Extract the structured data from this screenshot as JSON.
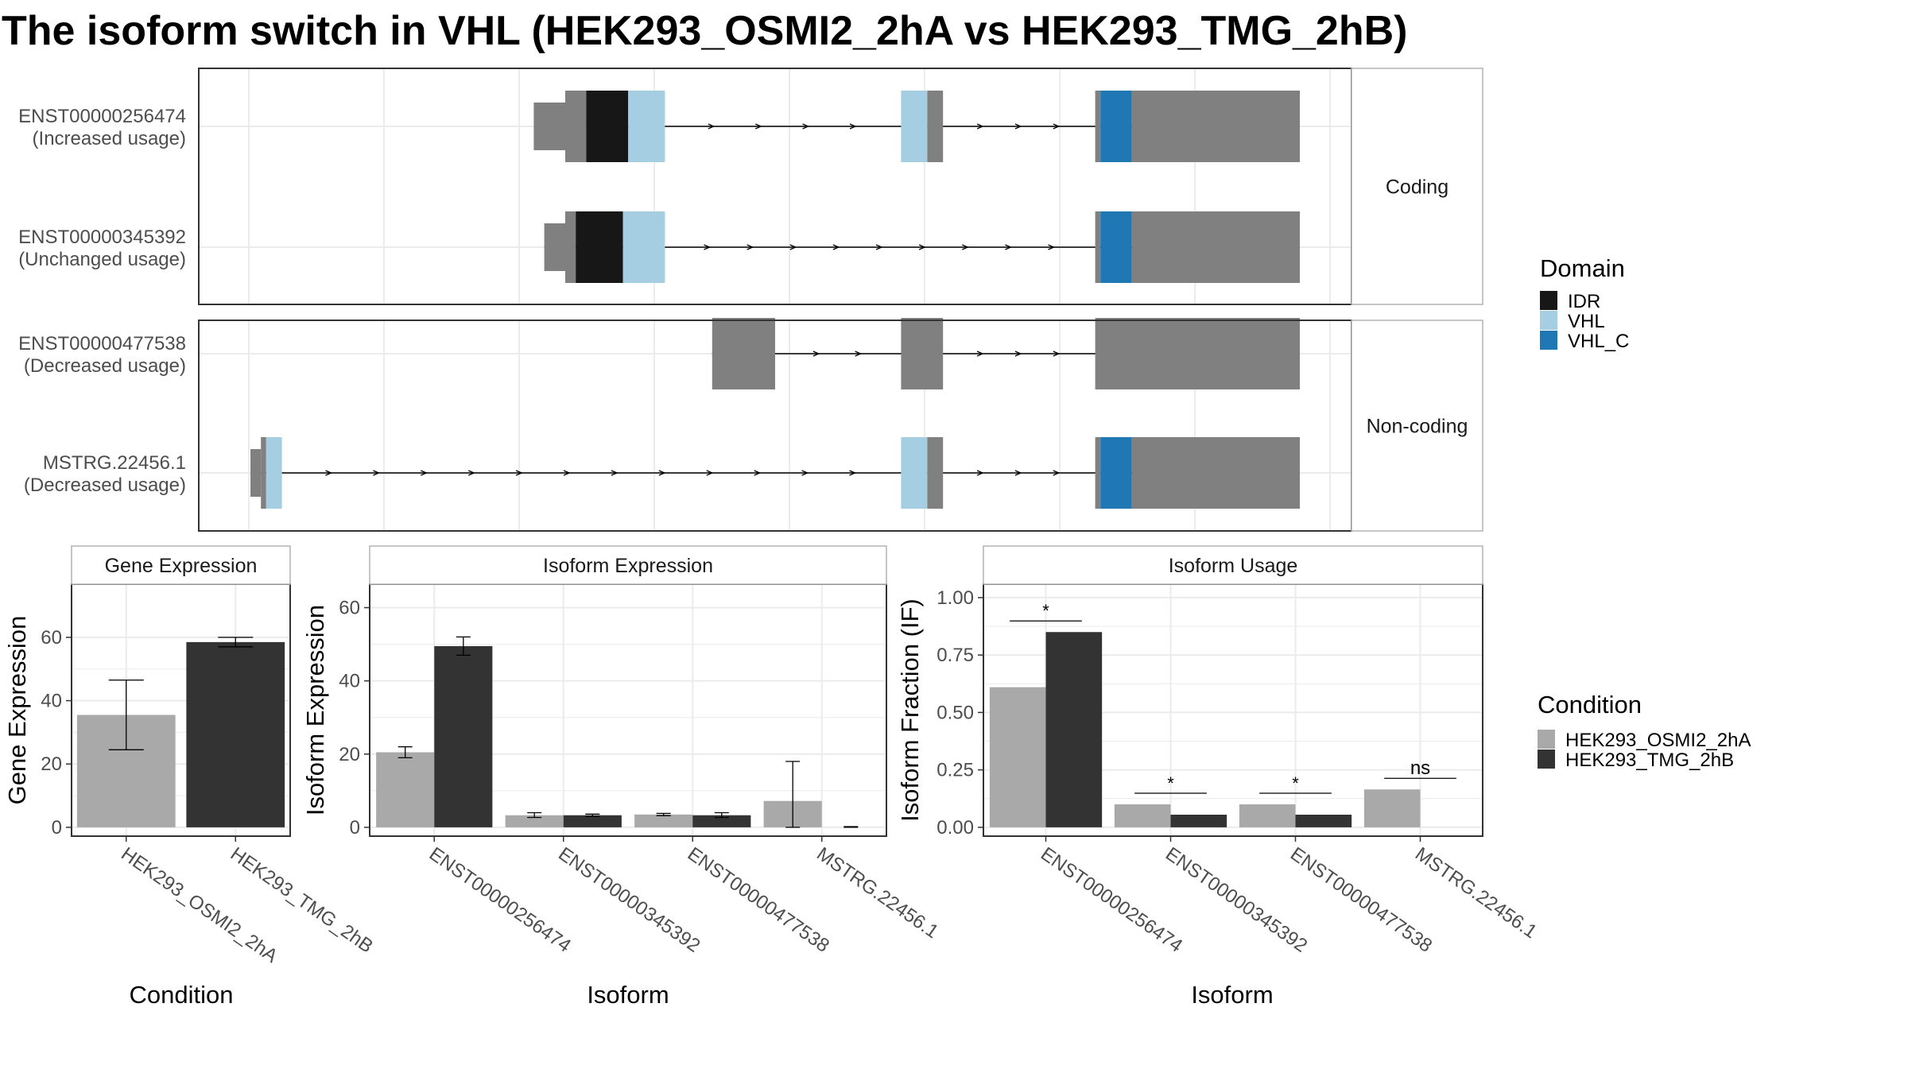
{
  "title": "The isoform switch in VHL (HEK293_OSMI2_2hA vs HEK293_TMG_2hB)",
  "colors": {
    "domain_IDR": "#171717",
    "domain_VHL": "#a6cee3",
    "domain_VHL_C": "#1f78b4",
    "exon": "#808080",
    "condition_A": "#a9a9a9",
    "condition_B": "#333333",
    "grid": "#ebebeb",
    "panel_border": "#333333"
  },
  "legends": {
    "domain": {
      "title": "Domain",
      "items": [
        "IDR",
        "VHL",
        "VHL_C"
      ]
    },
    "condition": {
      "title": "Condition",
      "items": [
        "HEK293_OSMI2_2hA",
        "HEK293_TMG_2hB"
      ]
    }
  },
  "chart_data": [
    {
      "type": "gene-structure",
      "panels": [
        {
          "strip": "Coding",
          "isoforms": [
            {
              "label": [
                "ENST00000256474",
                "(Increased usage)"
              ],
              "exons": [
                [
                  0.27,
                  0.3,
                  "utr"
                ],
                [
                  0.3,
                  0.32,
                  "exon"
                ],
                [
                  0.32,
                  0.36,
                  "IDR"
                ],
                [
                  0.36,
                  0.395,
                  "VHL"
                ],
                [
                  0.62,
                  0.645,
                  "VHL"
                ],
                [
                  0.645,
                  0.66,
                  "exon"
                ],
                [
                  0.805,
                  0.81,
                  "exon"
                ],
                [
                  0.81,
                  0.84,
                  "VHL_C"
                ],
                [
                  0.84,
                  1.0,
                  "exon"
                ]
              ]
            },
            {
              "label": [
                "ENST00000345392",
                "(Unchanged usage)"
              ],
              "exons": [
                [
                  0.28,
                  0.3,
                  "utr"
                ],
                [
                  0.3,
                  0.31,
                  "exon"
                ],
                [
                  0.31,
                  0.355,
                  "IDR"
                ],
                [
                  0.355,
                  0.395,
                  "VHL"
                ],
                [
                  0.805,
                  0.81,
                  "exon"
                ],
                [
                  0.81,
                  0.84,
                  "VHL_C"
                ],
                [
                  0.84,
                  1.0,
                  "exon"
                ]
              ]
            }
          ]
        },
        {
          "strip": "Non-coding",
          "isoforms": [
            {
              "label": [
                "ENST00000477538",
                "(Decreased usage)"
              ],
              "exons": [
                [
                  0.44,
                  0.5,
                  "exon"
                ],
                [
                  0.62,
                  0.66,
                  "exon"
                ],
                [
                  0.805,
                  1.0,
                  "exon"
                ]
              ]
            },
            {
              "label": [
                "MSTRG.22456.1",
                "(Decreased usage)"
              ],
              "exons": [
                [
                  0.0,
                  0.01,
                  "utr"
                ],
                [
                  0.01,
                  0.015,
                  "exon"
                ],
                [
                  0.015,
                  0.03,
                  "VHL"
                ],
                [
                  0.62,
                  0.645,
                  "VHL"
                ],
                [
                  0.645,
                  0.66,
                  "exon"
                ],
                [
                  0.805,
                  0.81,
                  "exon"
                ],
                [
                  0.81,
                  0.84,
                  "VHL_C"
                ],
                [
                  0.84,
                  1.0,
                  "exon"
                ]
              ]
            }
          ]
        }
      ]
    },
    {
      "type": "bar",
      "strip": "Gene Expression",
      "xlabel": "Condition",
      "ylabel": "Gene Expression",
      "ylim": [
        0,
        74
      ],
      "yticks": [
        0,
        20,
        40,
        60
      ],
      "categories": [
        "HEK293_OSMI2_2hA",
        "HEK293_TMG_2hB"
      ],
      "values": [
        35.5,
        58.5
      ],
      "errors": [
        [
          24.5,
          46.5
        ],
        [
          57.0,
          60.0
        ]
      ]
    },
    {
      "type": "bar",
      "strip": "Isoform Expression",
      "xlabel": "Isoform",
      "ylabel": "Isoform Expression",
      "ylim": [
        0,
        64
      ],
      "yticks": [
        0,
        20,
        40,
        60
      ],
      "categories": [
        "ENST00000256474",
        "ENST00000345392",
        "ENST00000477538",
        "MSTRG.22456.1"
      ],
      "series": [
        {
          "name": "HEK293_OSMI2_2hA",
          "values": [
            20.5,
            3.3,
            3.5,
            7.2
          ],
          "errors": [
            [
              19.0,
              22.0
            ],
            [
              2.7,
              4.0
            ],
            [
              3.2,
              3.8
            ],
            [
              0.0,
              18.0
            ]
          ]
        },
        {
          "name": "HEK293_TMG_2hB",
          "values": [
            49.5,
            3.3,
            3.3,
            0.0
          ],
          "errors": [
            [
              47.0,
              52.0
            ],
            [
              3.0,
              3.6
            ],
            [
              2.7,
              4.0
            ],
            [
              0.0,
              0.2
            ]
          ]
        }
      ]
    },
    {
      "type": "bar",
      "strip": "Isoform Usage",
      "xlabel": "Isoform",
      "ylabel": "Isoform Fraction (IF)",
      "ylim": [
        0,
        1.02
      ],
      "yticks": [
        0,
        0.25,
        0.5,
        0.75,
        1.0
      ],
      "yticklabels": [
        "0.00",
        "0.25",
        "0.50",
        "0.75",
        "1.00"
      ],
      "categories": [
        "ENST00000256474",
        "ENST00000345392",
        "ENST00000477538",
        "MSTRG.22456.1"
      ],
      "series": [
        {
          "name": "HEK293_OSMI2_2hA",
          "values": [
            0.61,
            0.1,
            0.1,
            0.165
          ]
        },
        {
          "name": "HEK293_TMG_2hB",
          "values": [
            0.85,
            0.055,
            0.055,
            0.0
          ]
        }
      ],
      "significance": [
        "*",
        "*",
        "*",
        "ns"
      ]
    }
  ]
}
